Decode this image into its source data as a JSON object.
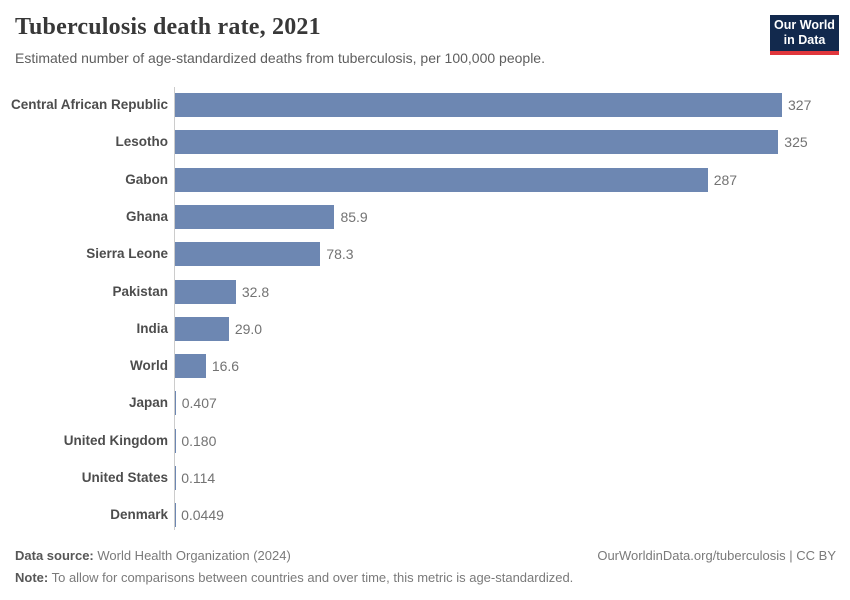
{
  "header": {
    "title": "Tuberculosis death rate, 2021",
    "subtitle": "Estimated number of age-standardized deaths from tuberculosis, per 100,000 people.",
    "logo": {
      "line1": "Our World",
      "line2": "in Data"
    }
  },
  "chart_data": {
    "type": "bar",
    "orientation": "horizontal",
    "title": "Tuberculosis death rate, 2021",
    "xlabel": "",
    "ylabel": "",
    "grid": false,
    "xlim": [
      0,
      327
    ],
    "categories": [
      "Central African Republic",
      "Lesotho",
      "Gabon",
      "Ghana",
      "Sierra Leone",
      "Pakistan",
      "India",
      "World",
      "Japan",
      "United Kingdom",
      "United States",
      "Denmark"
    ],
    "values": [
      327,
      325,
      287,
      85.9,
      78.3,
      32.8,
      29.0,
      16.6,
      0.407,
      0.18,
      0.114,
      0.0449
    ],
    "display_values": [
      "327",
      "325",
      "287",
      "85.9",
      "78.3",
      "32.8",
      "29.0",
      "16.6",
      "0.407",
      "0.180",
      "0.114",
      "0.0449"
    ],
    "bar_color": "#6d87b2"
  },
  "footer": {
    "source_label": "Data source:",
    "source_text": " World Health Organization (2024)",
    "note_label": "Note:",
    "note_text": " To allow for comparisons between countries and over time, this metric is age-standardized.",
    "credit": "OurWorldinData.org/tuberculosis | CC BY"
  },
  "colors": {
    "bar": "#6d87b2",
    "logo_navy": "#12294d",
    "logo_red": "#e0363c",
    "axis_line": "#cccccc"
  }
}
